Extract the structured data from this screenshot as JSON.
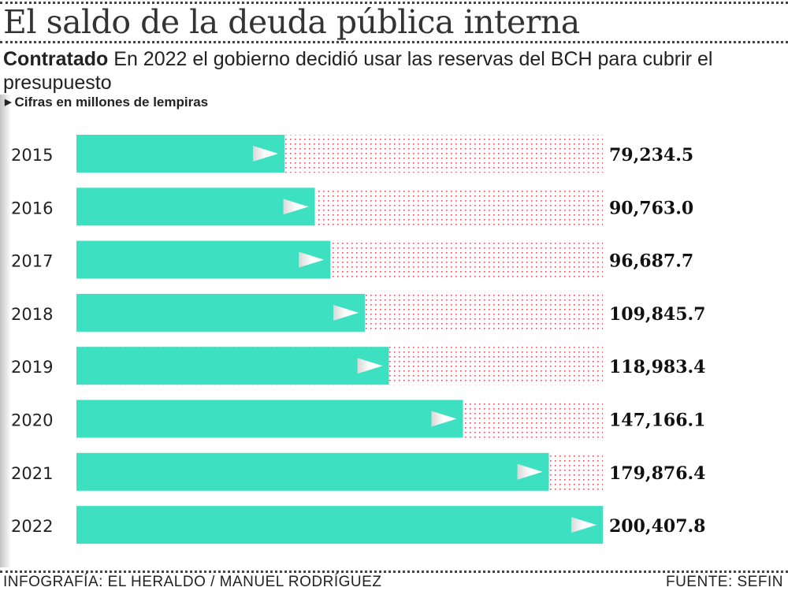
{
  "header": {
    "title": "El saldo de la deuda pública interna",
    "subtitle_bold": "Contratado",
    "subtitle_text": "En 2022 el gobierno decidió usar las reservas del BCH para cubrir el presupuesto",
    "unit_note": "Cifras en millones de lempiras"
  },
  "chart_data": {
    "type": "bar",
    "orientation": "horizontal",
    "title": "El saldo de la deuda pública interna",
    "categories": [
      "2015",
      "2016",
      "2017",
      "2018",
      "2019",
      "2020",
      "2021",
      "2022"
    ],
    "values": [
      79234.5,
      90763.0,
      96687.7,
      109845.7,
      118983.4,
      147166.1,
      179876.4,
      200407.8
    ],
    "value_labels": [
      "79,234.5",
      "90,763.0",
      "96,687.7",
      "109,845.7",
      "118,983.4",
      "147,166.1",
      "179,876.4",
      "200,407.8"
    ],
    "xlim": [
      0,
      200407.8
    ],
    "grid": false,
    "colors": {
      "bar": "#3de0c0",
      "remainder_dots": "#e05060",
      "arrow": "#ffffff"
    }
  },
  "footer": {
    "credit": "INFOGRAFÍA: EL HERALDO / MANUEL RODRÍGUEZ",
    "source": "FUENTE: SEFIN"
  }
}
